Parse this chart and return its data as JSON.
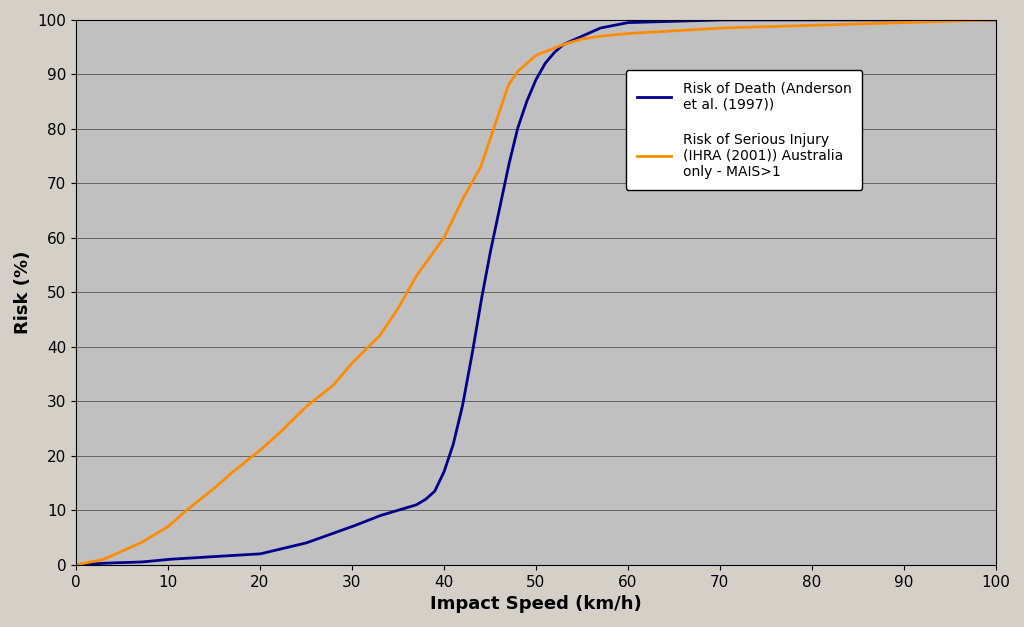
{
  "title": "",
  "xlabel": "Impact Speed (km/h)",
  "ylabel": "Risk (%)",
  "xlim": [
    0,
    100
  ],
  "ylim": [
    0,
    100
  ],
  "xticks": [
    0,
    10,
    20,
    30,
    40,
    50,
    60,
    70,
    80,
    90,
    100
  ],
  "yticks": [
    0,
    10,
    20,
    30,
    40,
    50,
    60,
    70,
    80,
    90,
    100
  ],
  "background_color": "#c0c0c0",
  "figure_background": "#d4d0c8",
  "death_color": "#00008B",
  "injury_color": "#FF8C00",
  "death_label": "Risk of Death (Anderson\net al. (1997))",
  "injury_label": "Risk of Serious Injury\n(IHRA (2001)) Australia\nonly - MAIS>1",
  "xlabel_fontsize": 13,
  "ylabel_fontsize": 13,
  "tick_fontsize": 11,
  "legend_fontsize": 10,
  "line_width": 2.0,
  "death_k": 0.65,
  "death_x0": 44.0,
  "injury_k": 0.115,
  "injury_x0": 25.0
}
